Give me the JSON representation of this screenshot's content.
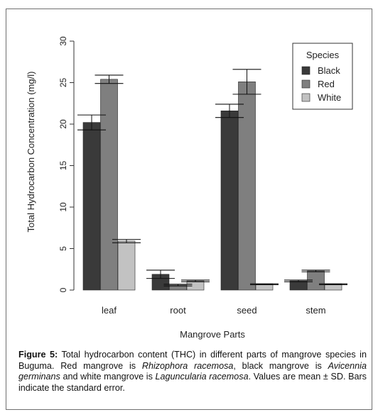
{
  "chart_data": {
    "type": "bar",
    "categories": [
      "leaf",
      "root",
      "seed",
      "stem"
    ],
    "series": [
      {
        "name": "Black",
        "color": "#3a3a3a",
        "values": [
          20.2,
          1.9,
          21.6,
          1.1
        ],
        "error": [
          0.9,
          0.5,
          0.8,
          0.1
        ]
      },
      {
        "name": "Red",
        "color": "#7f7f7f",
        "values": [
          25.4,
          0.6,
          25.1,
          2.3
        ],
        "error": [
          0.5,
          0.1,
          1.5,
          0.1
        ]
      },
      {
        "name": "White",
        "color": "#c2c2c2",
        "values": [
          5.9,
          1.1,
          0.7,
          0.7
        ],
        "error": [
          0.2,
          0.1,
          0.05,
          0.05
        ]
      }
    ],
    "ylabel": "Total Hydrocarbon Concentration (mg/l)",
    "xlabel": "Mangrove Parts",
    "ylim": [
      0,
      30
    ],
    "yticks": [
      "0",
      "5",
      "10",
      "15",
      "20",
      "25",
      "30"
    ],
    "legend": {
      "title": "Species",
      "position": "top-right"
    },
    "grid": false
  },
  "caption": {
    "label": "Figure 5:",
    "text_1": " Total hydrocarbon content (THC) in different parts of mangrove species in Buguma. Red mangrove is ",
    "species_red": "Rhizophora racemosa",
    "text_2": ", black mangrove is ",
    "species_black": "Avicennia germinans",
    "text_3": " and white mangrove is ",
    "species_white": "Laguncularia racemosa",
    "text_4": ". Values are mean ± SD. Bars indicate the standard error."
  }
}
